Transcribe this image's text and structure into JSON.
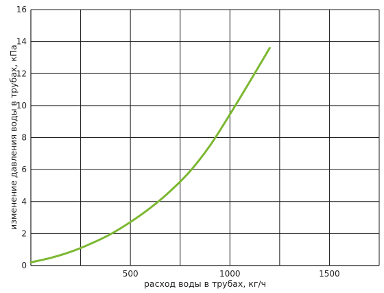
{
  "chart_data": {
    "type": "line",
    "title": "",
    "xlabel": "расход воды в трубах, кг/ч",
    "ylabel": "изменение давления воды в трубах, кПа",
    "xlim": [
      0,
      1750
    ],
    "ylim": [
      0,
      16
    ],
    "x_grid": [
      250,
      500,
      750,
      1000,
      1250,
      1500,
      1750
    ],
    "x_ticks": [
      500,
      1000,
      1500
    ],
    "x_tick_labels": [
      "500",
      "1000",
      "1500"
    ],
    "y_ticks": [
      0,
      2,
      4,
      6,
      8,
      10,
      12,
      14,
      16
    ],
    "y_tick_labels": [
      "0",
      "2",
      "4",
      "6",
      "8",
      "10",
      "12",
      "14",
      "16"
    ],
    "grid": true,
    "series": [
      {
        "color": "#7cb832",
        "x": [
          0,
          100,
          200,
          300,
          400,
          500,
          600,
          700,
          800,
          900,
          1000,
          1100,
          1200
        ],
        "y": [
          0.2,
          0.48,
          0.86,
          1.36,
          1.96,
          2.72,
          3.6,
          4.65,
          5.9,
          7.5,
          9.45,
          11.5,
          13.6
        ]
      }
    ]
  }
}
